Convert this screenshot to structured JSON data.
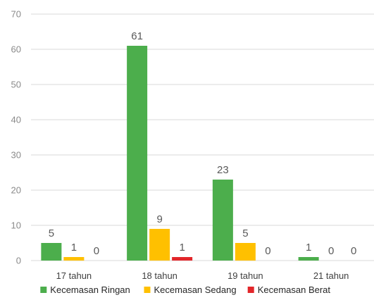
{
  "chart_data": {
    "type": "bar",
    "categories": [
      "17 tahun",
      "18 tahun",
      "19 tahun",
      "21 tahun"
    ],
    "series": [
      {
        "name": "Kecemasan Ringan",
        "values": [
          5,
          61,
          23,
          1
        ],
        "color": "#4cae4c"
      },
      {
        "name": "Kecemasan Sedang",
        "values": [
          1,
          9,
          5,
          0
        ],
        "color": "#ffc000"
      },
      {
        "name": "Kecemasan Berat",
        "values": [
          0,
          1,
          0,
          0
        ],
        "color": "#e2262a"
      }
    ],
    "title": "",
    "xlabel": "",
    "ylabel": "",
    "ylim": [
      0,
      70
    ],
    "yticks": [
      0,
      10,
      20,
      30,
      40,
      50,
      60,
      70
    ],
    "grid": true,
    "legend_position": "bottom",
    "data_labels": true
  }
}
